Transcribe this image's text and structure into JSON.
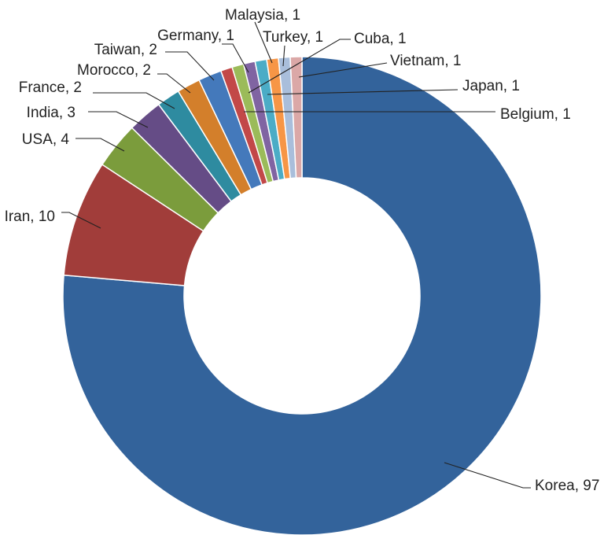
{
  "chart_data": {
    "type": "pie",
    "style": "donut",
    "title": "",
    "slices": [
      {
        "label": "Korea",
        "value": 97,
        "display": "Korea, 97",
        "color": "#33639b"
      },
      {
        "label": "Iran",
        "value": 10,
        "display": "Iran, 10",
        "color": "#a13d3a"
      },
      {
        "label": "USA",
        "value": 4,
        "display": "USA, 4",
        "color": "#7b9c3c"
      },
      {
        "label": "India",
        "value": 3,
        "display": "India, 3",
        "color": "#654c86"
      },
      {
        "label": "France",
        "value": 2,
        "display": "France, 2",
        "color": "#2e8ba0"
      },
      {
        "label": "Morocco",
        "value": 2,
        "display": "Morocco, 2",
        "color": "#d37f2b"
      },
      {
        "label": "Taiwan",
        "value": 2,
        "display": "Taiwan, 2",
        "color": "#4479bb"
      },
      {
        "label": "Germany",
        "value": 1,
        "display": "Germany, 1",
        "color": "#c24848"
      },
      {
        "label": "Malaysia",
        "value": 1,
        "display": "Malaysia, 1",
        "color": "#9bbb59"
      },
      {
        "label": "Turkey",
        "value": 1,
        "display": "Turkey, 1",
        "color": "#8064a2"
      },
      {
        "label": "Cuba",
        "value": 1,
        "display": "Cuba, 1",
        "color": "#4bacc6"
      },
      {
        "label": "Vietnam",
        "value": 1,
        "display": "Vietnam, 1",
        "color": "#f79646"
      },
      {
        "label": "Japan",
        "value": 1,
        "display": "Japan, 1",
        "color": "#a9bedb"
      },
      {
        "label": "Belgium",
        "value": 1,
        "display": "Belgium, 1",
        "color": "#dba8a7"
      }
    ]
  }
}
